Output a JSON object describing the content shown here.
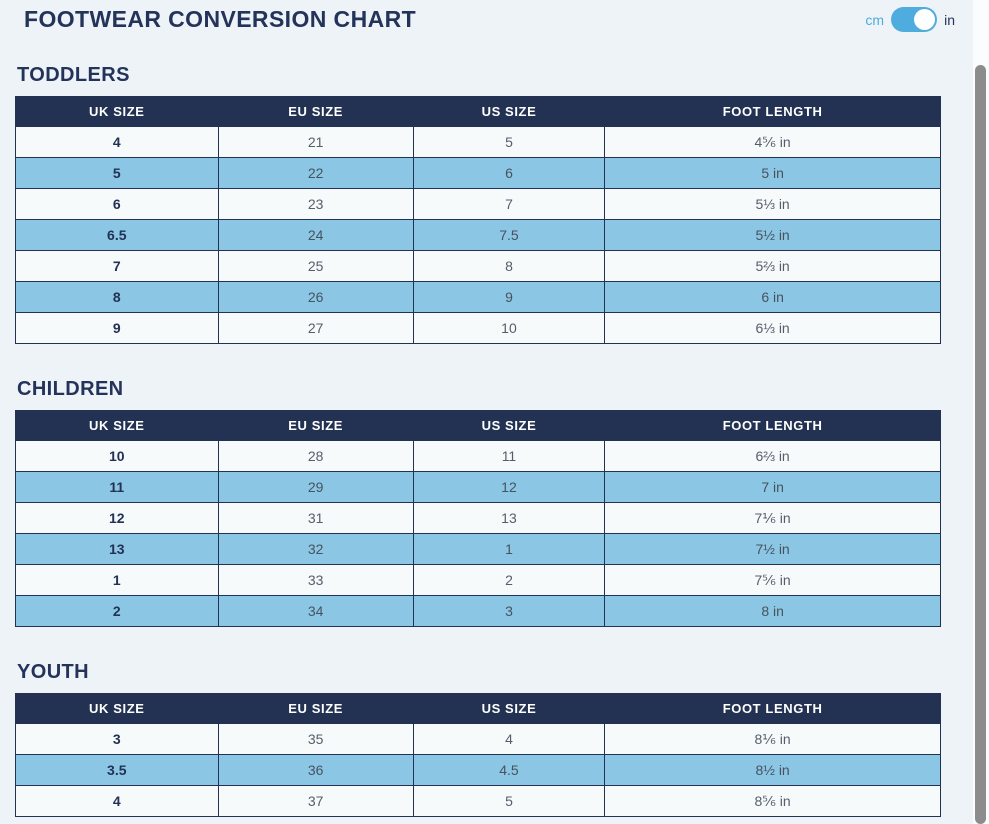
{
  "page": {
    "title": "FOOTWEAR CONVERSION CHART"
  },
  "unit_toggle": {
    "left_label": "cm",
    "right_label": "in",
    "selected": "in"
  },
  "colors": {
    "navy": "#233253",
    "light_blue_row": "#8BC7E5",
    "light_row": "#F7FAFB",
    "toggle_blue": "#4EACDE",
    "page_background": "#EEF3F8",
    "muted_text": "#545E6B"
  },
  "columns": [
    "UK SIZE",
    "EU SIZE",
    "US SIZE",
    "FOOT LENGTH"
  ],
  "sections": [
    {
      "heading": "TODDLERS",
      "rows": [
        [
          "4",
          "21",
          "5",
          "4⅚ in"
        ],
        [
          "5",
          "22",
          "6",
          "5 in"
        ],
        [
          "6",
          "23",
          "7",
          "5⅓ in"
        ],
        [
          "6.5",
          "24",
          "7.5",
          "5½ in"
        ],
        [
          "7",
          "25",
          "8",
          "5⅔ in"
        ],
        [
          "8",
          "26",
          "9",
          "6 in"
        ],
        [
          "9",
          "27",
          "10",
          "6⅓ in"
        ]
      ]
    },
    {
      "heading": "CHILDREN",
      "rows": [
        [
          "10",
          "28",
          "11",
          "6⅔ in"
        ],
        [
          "11",
          "29",
          "12",
          "7 in"
        ],
        [
          "12",
          "31",
          "13",
          "7⅙ in"
        ],
        [
          "13",
          "32",
          "1",
          "7½ in"
        ],
        [
          "1",
          "33",
          "2",
          "7⅚ in"
        ],
        [
          "2",
          "34",
          "3",
          "8 in"
        ]
      ]
    },
    {
      "heading": "YOUTH",
      "rows": [
        [
          "3",
          "35",
          "4",
          "8⅙ in"
        ],
        [
          "3.5",
          "36",
          "4.5",
          "8½ in"
        ],
        [
          "4",
          "37",
          "5",
          "8⅚ in"
        ]
      ]
    }
  ]
}
